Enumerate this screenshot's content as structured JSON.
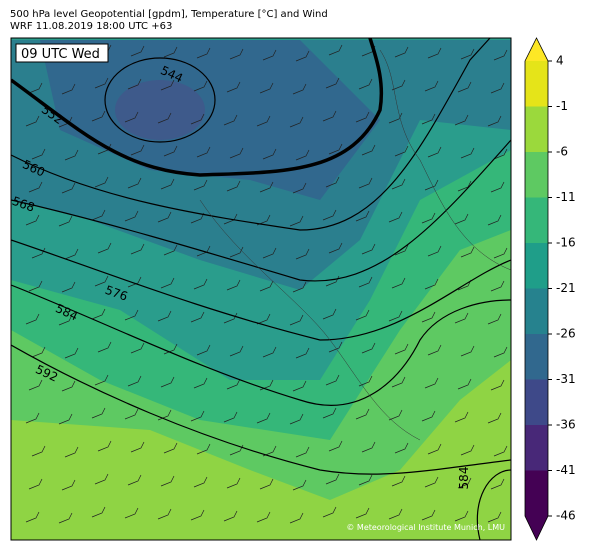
{
  "header": {
    "title": "500 hPa level Geopotential [gpdm], Temperature [°C] and Wind",
    "subtitle": "WRF 11.08.2019 18:00 UTC +63"
  },
  "map": {
    "time_label": "09 UTC Wed",
    "contour_labels": [
      "544",
      "552",
      "560",
      "568",
      "576",
      "584",
      "592",
      "584"
    ],
    "credit": "© Meteorological Institute Munich, LMU"
  },
  "colorbar": {
    "ticks": [
      4,
      -1,
      -6,
      -11,
      -16,
      -21,
      -26,
      -31,
      -36,
      -41,
      -46
    ],
    "colors": [
      "#e5e419",
      "#9bd93c",
      "#5ec962",
      "#35b779",
      "#1f9e89",
      "#26828e",
      "#31688e",
      "#3e4989",
      "#482878",
      "#440154"
    ],
    "extend_colors": [
      "#fde725",
      "#440154"
    ]
  }
}
